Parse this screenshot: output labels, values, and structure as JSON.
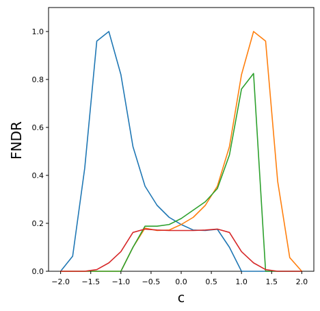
{
  "chart_data": {
    "type": "line",
    "xlabel": "c",
    "ylabel": "FNDR",
    "xlim": [
      -2.2,
      2.2
    ],
    "ylim": [
      0.0,
      1.1
    ],
    "xticks": [
      -2.0,
      -1.5,
      -1.0,
      -0.5,
      0.0,
      0.5,
      1.0,
      1.5,
      2.0
    ],
    "xtick_labels": [
      "−2.0",
      "−1.5",
      "−1.0",
      "−0.5",
      "0.0",
      "0.5",
      "1.0",
      "1.5",
      "2.0"
    ],
    "yticks": [
      0.0,
      0.2,
      0.4,
      0.6,
      0.8,
      1.0
    ],
    "ytick_labels": [
      "0.0",
      "0.2",
      "0.4",
      "0.6",
      "0.8",
      "1.0"
    ],
    "grid": false,
    "x": [
      -2.0,
      -1.8,
      -1.6,
      -1.4,
      -1.2,
      -1.0,
      -0.8,
      -0.6,
      -0.4,
      -0.2,
      0.0,
      0.2,
      0.4,
      0.6,
      0.8,
      1.0,
      1.2,
      1.4,
      1.6,
      1.8,
      2.0
    ],
    "series": [
      {
        "color": "#1f77b4",
        "values": [
          0.0,
          0.063,
          0.43,
          0.96,
          1.0,
          0.82,
          0.52,
          0.355,
          0.275,
          0.225,
          0.195,
          0.172,
          0.17,
          0.175,
          0.1,
          0.0,
          0.0,
          0.0,
          0.0,
          0.0,
          0.0
        ]
      },
      {
        "color": "#ff7f0e",
        "values": [
          0.0,
          0.0,
          0.0,
          0.0,
          0.0,
          0.0,
          0.1,
          0.18,
          0.17,
          0.172,
          0.195,
          0.225,
          0.275,
          0.355,
          0.52,
          0.82,
          1.0,
          0.96,
          0.375,
          0.057,
          0.0
        ]
      },
      {
        "color": "#2ca02c",
        "values": [
          0.0,
          0.0,
          0.0,
          0.0,
          0.0,
          0.0,
          0.1,
          0.188,
          0.188,
          0.195,
          0.22,
          0.255,
          0.29,
          0.345,
          0.485,
          0.76,
          0.825,
          0.0,
          0.0,
          0.0,
          0.0
        ]
      },
      {
        "color": "#d62728",
        "values": [
          0.0,
          0.0,
          0.0,
          0.007,
          0.035,
          0.082,
          0.162,
          0.176,
          0.172,
          0.17,
          0.17,
          0.17,
          0.172,
          0.176,
          0.162,
          0.082,
          0.035,
          0.007,
          0.0,
          0.0,
          0.0
        ]
      }
    ]
  }
}
